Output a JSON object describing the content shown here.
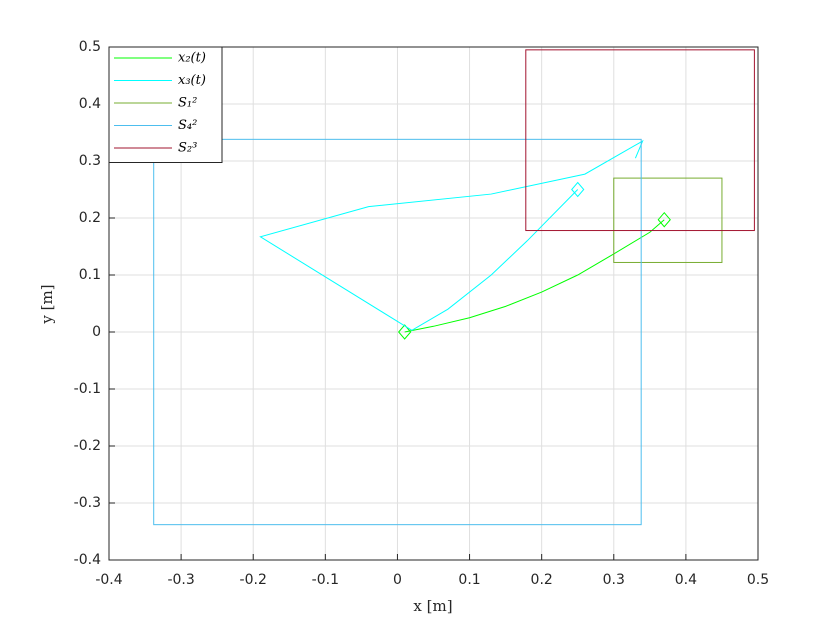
{
  "chart_data": {
    "type": "line",
    "xlabel": "x [m]",
    "ylabel": "y [m]",
    "xlim": [
      -0.4,
      0.5
    ],
    "ylim": [
      -0.4,
      0.5
    ],
    "xticks": [
      -0.4,
      -0.3,
      -0.2,
      -0.1,
      0,
      0.1,
      0.2,
      0.3,
      0.4,
      0.5
    ],
    "yticks": [
      -0.4,
      -0.3,
      -0.2,
      -0.1,
      0,
      0.1,
      0.2,
      0.3,
      0.4,
      0.5
    ],
    "grid": true,
    "legend": "upper-left",
    "series": [
      {
        "name": "x₂(t)",
        "kind": "line",
        "color": "#00ff00",
        "marker": "diamond",
        "marker_at": [
          "start",
          "end"
        ],
        "x": [
          0.01,
          0.05,
          0.1,
          0.15,
          0.2,
          0.25,
          0.3,
          0.35,
          0.37
        ],
        "y": [
          0.0,
          0.01,
          0.025,
          0.045,
          0.07,
          0.1,
          0.137,
          0.175,
          0.197
        ]
      },
      {
        "name": "x₃(t)",
        "kind": "line",
        "color": "#00ffff",
        "marker": "diamond",
        "marker_at": [
          "end"
        ],
        "x": [
          0.33,
          0.34,
          0.26,
          0.13,
          -0.04,
          -0.19,
          0.02,
          0.07,
          0.13,
          0.18,
          0.25
        ],
        "y": [
          0.305,
          0.335,
          0.277,
          0.242,
          0.22,
          0.167,
          0.003,
          0.04,
          0.1,
          0.16,
          0.25
        ]
      },
      {
        "name": "S₁²",
        "kind": "rect",
        "color": "#77ac30",
        "x": [
          0.3,
          0.45
        ],
        "y": [
          0.122,
          0.27
        ]
      },
      {
        "name": "S₄²",
        "kind": "rect",
        "color": "#4dbeee",
        "x": [
          -0.338,
          0.338
        ],
        "y": [
          -0.338,
          0.338
        ]
      },
      {
        "name": "S₂³",
        "kind": "rect",
        "color": "#a2142f",
        "x": [
          0.178,
          0.495
        ],
        "y": [
          0.178,
          0.495
        ]
      }
    ]
  }
}
